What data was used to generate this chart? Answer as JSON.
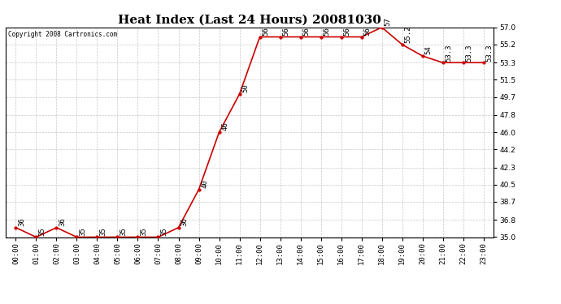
{
  "title": "Heat Index (Last 24 Hours) 20081030",
  "copyright": "Copyright 2008 Cartronics.com",
  "hours": [
    "00:00",
    "01:00",
    "02:00",
    "03:00",
    "04:00",
    "05:00",
    "06:00",
    "07:00",
    "08:00",
    "09:00",
    "10:00",
    "11:00",
    "12:00",
    "13:00",
    "14:00",
    "15:00",
    "16:00",
    "17:00",
    "18:00",
    "19:00",
    "20:00",
    "21:00",
    "22:00",
    "23:00"
  ],
  "values": [
    36,
    35,
    36,
    35,
    35,
    35,
    35,
    35,
    36,
    40,
    46,
    50,
    56,
    56,
    56,
    56,
    56,
    56,
    57,
    55.2,
    54,
    53.3,
    53.3,
    53.3
  ],
  "ylim_min": 35.0,
  "ylim_max": 57.0,
  "yticks": [
    35.0,
    36.8,
    38.7,
    40.5,
    42.3,
    44.2,
    46.0,
    47.8,
    49.7,
    51.5,
    53.3,
    55.2,
    57.0
  ],
  "line_color": "#cc0000",
  "marker_color": "#000000",
  "bg_color": "#ffffff",
  "grid_color": "#c8c8c8",
  "title_fontsize": 11,
  "tick_fontsize": 6.5,
  "annotation_fontsize": 6.5
}
